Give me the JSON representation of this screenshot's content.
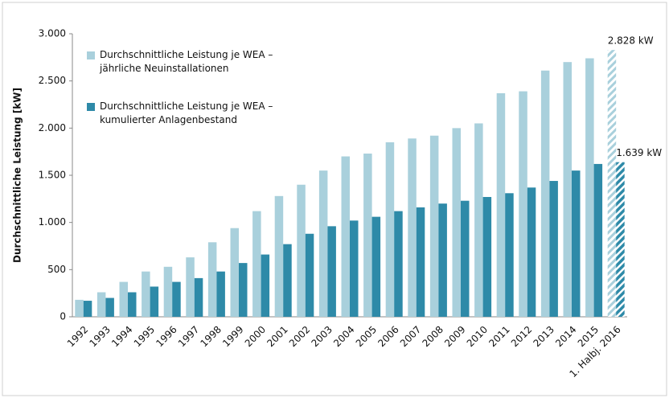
{
  "chart_data": {
    "type": "bar",
    "y_label": "Durchschnittliche Leistung [kW]",
    "categories": [
      "1992",
      "1993",
      "1994",
      "1995",
      "1996",
      "1997",
      "1998",
      "1999",
      "2000",
      "2001",
      "2002",
      "2003",
      "2004",
      "2005",
      "2006",
      "2007",
      "2008",
      "2009",
      "2010",
      "2011",
      "2012",
      "2013",
      "2014",
      "2015",
      "1. Halbj. 2016"
    ],
    "series": [
      {
        "name": "Durchschnittliche Leistung je WEA – jährliche Neuinstallationen",
        "color": "#a9d0dc",
        "values": [
          180,
          260,
          370,
          480,
          530,
          630,
          790,
          940,
          1120,
          1280,
          1400,
          1550,
          1700,
          1730,
          1850,
          1890,
          1920,
          2000,
          2050,
          2370,
          2390,
          2610,
          2700,
          2740,
          2828
        ],
        "value_labels": [
          null,
          null,
          null,
          null,
          null,
          null,
          null,
          null,
          null,
          null,
          null,
          null,
          null,
          null,
          null,
          null,
          null,
          null,
          null,
          null,
          null,
          null,
          null,
          null,
          "2.828 kW"
        ]
      },
      {
        "name": "Durchschnittliche Leistung je WEA – kumulierter Anlagenbestand",
        "color": "#2e8aa8",
        "values": [
          170,
          200,
          260,
          320,
          370,
          410,
          480,
          570,
          660,
          770,
          880,
          960,
          1020,
          1060,
          1120,
          1160,
          1200,
          1230,
          1270,
          1310,
          1370,
          1440,
          1550,
          1620,
          1639
        ],
        "value_labels": [
          null,
          null,
          null,
          null,
          null,
          null,
          null,
          null,
          null,
          null,
          null,
          null,
          null,
          null,
          null,
          null,
          null,
          null,
          null,
          null,
          null,
          null,
          null,
          null,
          "1.639 kW"
        ]
      }
    ],
    "ylim": [
      0,
      3000
    ],
    "yticks": [
      0,
      500,
      {
        "value": 1000,
        "label": "1.000"
      },
      {
        "value": 1500,
        "label": "1.500"
      },
      {
        "value": 2000,
        "label": "2.000"
      },
      {
        "value": 2500,
        "label": "2.500"
      },
      {
        "value": 3000,
        "label": "3.000"
      }
    ],
    "grid": false
  }
}
